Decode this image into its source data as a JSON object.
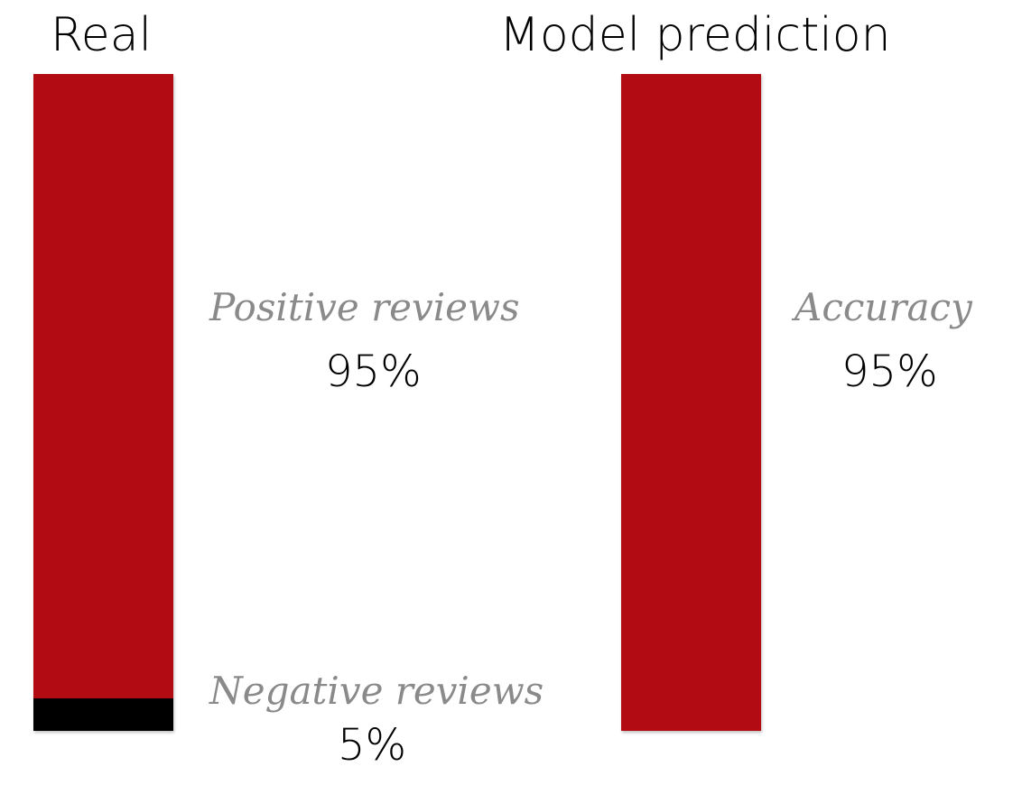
{
  "chart_data": [
    {
      "type": "bar",
      "title": "Real",
      "stacked": true,
      "categories": [
        "Real"
      ],
      "series": [
        {
          "name": "Positive reviews",
          "values": [
            95
          ],
          "value_label": "95%",
          "color": "#b30b14"
        },
        {
          "name": "Negative reviews",
          "values": [
            5
          ],
          "value_label": "5%",
          "color": "#000000"
        }
      ],
      "ylim": [
        0,
        100
      ],
      "grid": false
    },
    {
      "type": "bar",
      "title": "Model prediction",
      "stacked": true,
      "categories": [
        "Model prediction"
      ],
      "series": [
        {
          "name": "Accuracy",
          "values": [
            95
          ],
          "value_label": "95%",
          "color": "#b30b14"
        }
      ],
      "ylim": [
        0,
        100
      ],
      "grid": false
    }
  ]
}
